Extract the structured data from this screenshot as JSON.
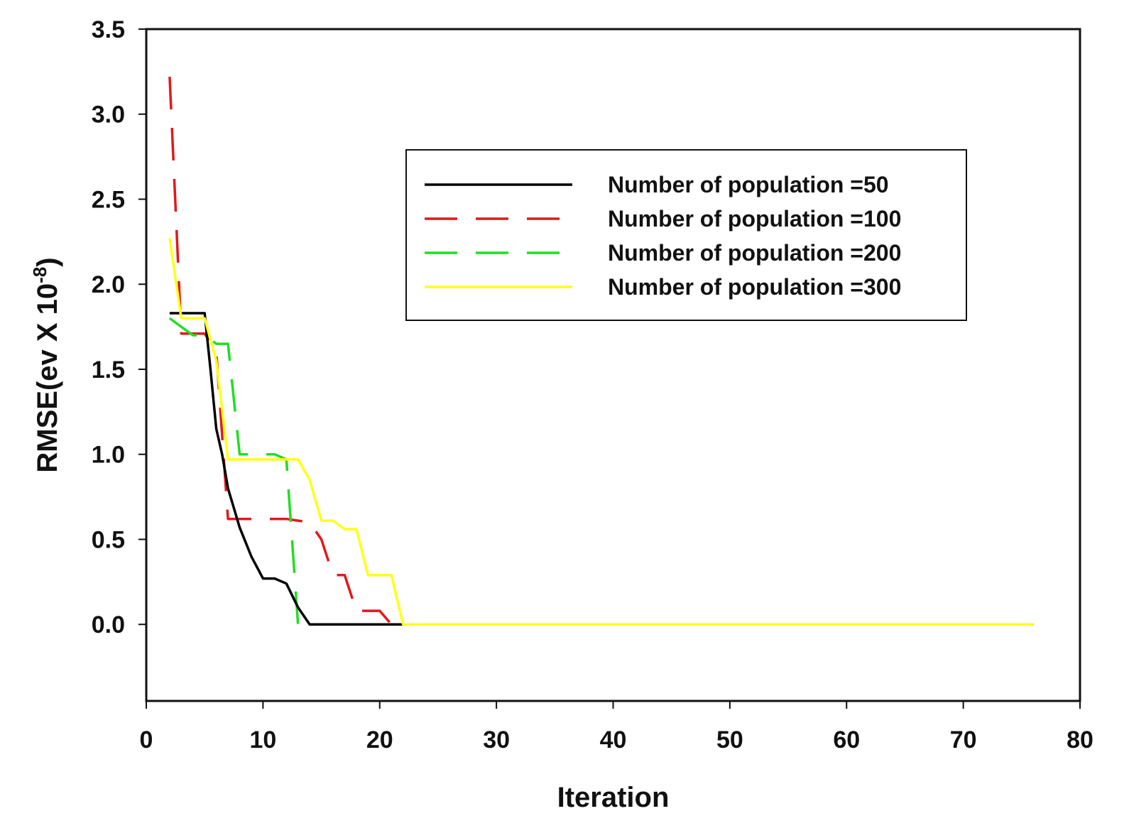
{
  "chart_data": {
    "type": "line",
    "title": "",
    "xlabel": "Iteration",
    "ylabel_main": "RMSE(ev  X 10",
    "ylabel_exponent": "-8",
    "ylabel_suffix": ")",
    "xlim": [
      0,
      80
    ],
    "ylim": [
      -0.45,
      3.5
    ],
    "x_ticks": [
      0,
      10,
      20,
      30,
      40,
      50,
      60,
      70,
      80
    ],
    "x_tick_labels": [
      "0",
      "10",
      "20",
      "30",
      "40",
      "50",
      "60",
      "70",
      "80"
    ],
    "y_ticks": [
      0.0,
      0.5,
      1.0,
      1.5,
      2.0,
      2.5,
      3.0,
      3.5
    ],
    "y_tick_labels": [
      "0.0",
      "0.5",
      "1.0",
      "1.5",
      "2.0",
      "2.5",
      "3.0",
      "3.5"
    ],
    "grid": false,
    "legend_position": "top-right",
    "series": [
      {
        "name": "Number of population =50",
        "color": "#000000",
        "dash": "solid",
        "x": [
          2,
          3,
          4,
          5,
          5.5,
          6,
          6.5,
          7,
          8,
          9,
          10,
          11,
          12,
          13,
          14,
          15,
          76
        ],
        "y": [
          1.83,
          1.83,
          1.83,
          1.83,
          1.5,
          1.15,
          1.0,
          0.8,
          0.57,
          0.4,
          0.27,
          0.27,
          0.24,
          0.1,
          0.0,
          0.0,
          0.0
        ]
      },
      {
        "name": "Number of population =100",
        "color": "#e0191b",
        "dash": "long",
        "x": [
          2,
          3,
          4,
          5,
          6,
          7,
          8,
          9,
          10,
          11,
          12,
          13,
          14,
          15,
          16,
          17,
          18,
          19,
          20,
          21,
          22,
          76
        ],
        "y": [
          3.22,
          1.71,
          1.71,
          1.71,
          1.6,
          0.62,
          0.62,
          0.62,
          0.62,
          0.62,
          0.62,
          0.61,
          0.6,
          0.5,
          0.29,
          0.29,
          0.08,
          0.08,
          0.08,
          0.0,
          0.0,
          0.0
        ]
      },
      {
        "name": "Number of population =200",
        "color": "#22dd22",
        "dash": "long",
        "x": [
          2,
          3,
          4,
          5,
          6,
          7,
          8,
          9,
          10,
          11,
          12,
          13,
          14,
          76
        ],
        "y": [
          1.8,
          1.75,
          1.7,
          1.7,
          1.65,
          1.65,
          1.0,
          1.0,
          1.0,
          1.0,
          0.97,
          0.0,
          0.0,
          0.0
        ]
      },
      {
        "name": "Number of population =300",
        "color": "#ffff1a",
        "dash": "solid",
        "x": [
          2,
          3,
          4,
          5,
          6,
          7,
          8,
          9,
          10,
          11,
          12,
          13,
          14,
          15,
          16,
          17,
          18,
          19,
          20,
          21,
          22,
          76
        ],
        "y": [
          2.27,
          1.8,
          1.8,
          1.8,
          1.55,
          0.97,
          0.97,
          0.97,
          0.97,
          0.97,
          0.97,
          0.97,
          0.85,
          0.61,
          0.61,
          0.56,
          0.56,
          0.29,
          0.29,
          0.29,
          0.0,
          0.0
        ]
      }
    ]
  }
}
